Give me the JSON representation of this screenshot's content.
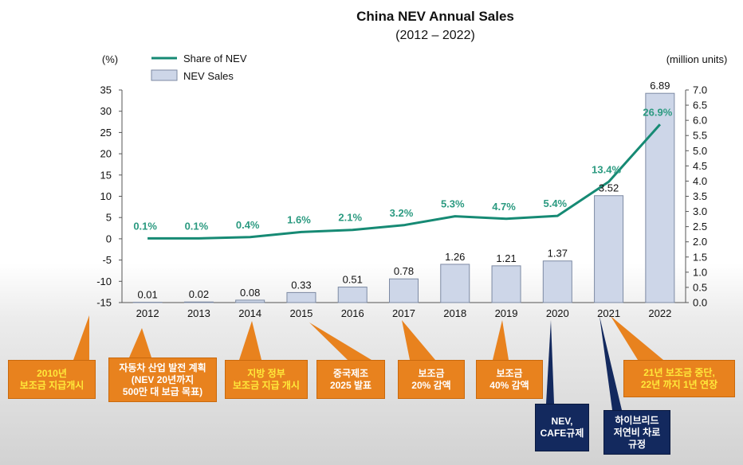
{
  "chart_data": {
    "type": "bar",
    "title": "China NEV Annual Sales",
    "subtitle": "(2012 – 2022)",
    "categories": [
      "2012",
      "2013",
      "2014",
      "2015",
      "2016",
      "2017",
      "2018",
      "2019",
      "2020",
      "2021",
      "2022"
    ],
    "series": [
      {
        "name": "NEV Sales",
        "type": "bar",
        "axis": "right",
        "values": [
          0.01,
          0.02,
          0.08,
          0.33,
          0.51,
          0.78,
          1.26,
          1.21,
          1.37,
          3.52,
          6.89
        ],
        "labels": [
          "0.01",
          "0.02",
          "0.08",
          "0.33",
          "0.51",
          "0.78",
          "1.26",
          "1.21",
          "1.37",
          "3.52",
          "6.89"
        ]
      },
      {
        "name": "Share of NEV",
        "type": "line",
        "axis": "left",
        "values": [
          0.1,
          0.1,
          0.4,
          1.6,
          2.1,
          3.2,
          5.3,
          4.7,
          5.4,
          13.4,
          26.9
        ],
        "labels": [
          "0.1%",
          "0.1%",
          "0.4%",
          "1.6%",
          "2.1%",
          "3.2%",
          "5.3%",
          "4.7%",
          "5.4%",
          "13.4%",
          "26.9%"
        ]
      }
    ],
    "ylabel_left": "(%)",
    "ylabel_right": "(million units)",
    "ylim_left": [
      -15,
      35
    ],
    "ylim_right": [
      0,
      7.0
    ],
    "yticks_left": [
      "35",
      "30",
      "25",
      "20",
      "15",
      "10",
      "5",
      "0",
      "-5",
      "-10",
      "-15"
    ],
    "yticks_right": [
      "7.0",
      "6.5",
      "6.0",
      "5.5",
      "5.0",
      "4.5",
      "4.0",
      "3.5",
      "3.0",
      "2.5",
      "2.0",
      "1.5",
      "1.0",
      "0.5",
      "0.0"
    ],
    "legend_position": "top-left",
    "colors": {
      "bar_fill": "#cdd6e8",
      "bar_stroke": "#7d8aa3",
      "line": "#168a74",
      "line_label": "#2b9a80"
    }
  },
  "annotations": [
    {
      "id": "2010",
      "text": [
        "2010년",
        "보조금 지급개시"
      ],
      "style": "orange-yellow"
    },
    {
      "id": "2012",
      "text": [
        "자동차 산업 발전 계획",
        "(NEV 20년까지",
        "500만 대 보급 목표)"
      ],
      "style": "orange-white"
    },
    {
      "id": "2014",
      "text": [
        "지방 정부",
        "보조금 지급 개시"
      ],
      "style": "orange-yellow"
    },
    {
      "id": "2015",
      "text": [
        "중국제조",
        "2025 발표"
      ],
      "style": "orange-white"
    },
    {
      "id": "2017",
      "text": [
        "보조금",
        "20% 감액"
      ],
      "style": "orange-white"
    },
    {
      "id": "2019",
      "text": [
        "보조금",
        "40% 감액"
      ],
      "style": "orange-white"
    },
    {
      "id": "2020",
      "text": [
        "NEV,",
        "CAFE규제"
      ],
      "style": "navy"
    },
    {
      "id": "2021a",
      "text": [
        "하이브리드",
        "저연비 차로",
        "규정"
      ],
      "style": "navy"
    },
    {
      "id": "2021b",
      "text": [
        "21년 보조금 중단,",
        "22년 까지 1년 연장"
      ],
      "style": "orange-yellow"
    }
  ]
}
